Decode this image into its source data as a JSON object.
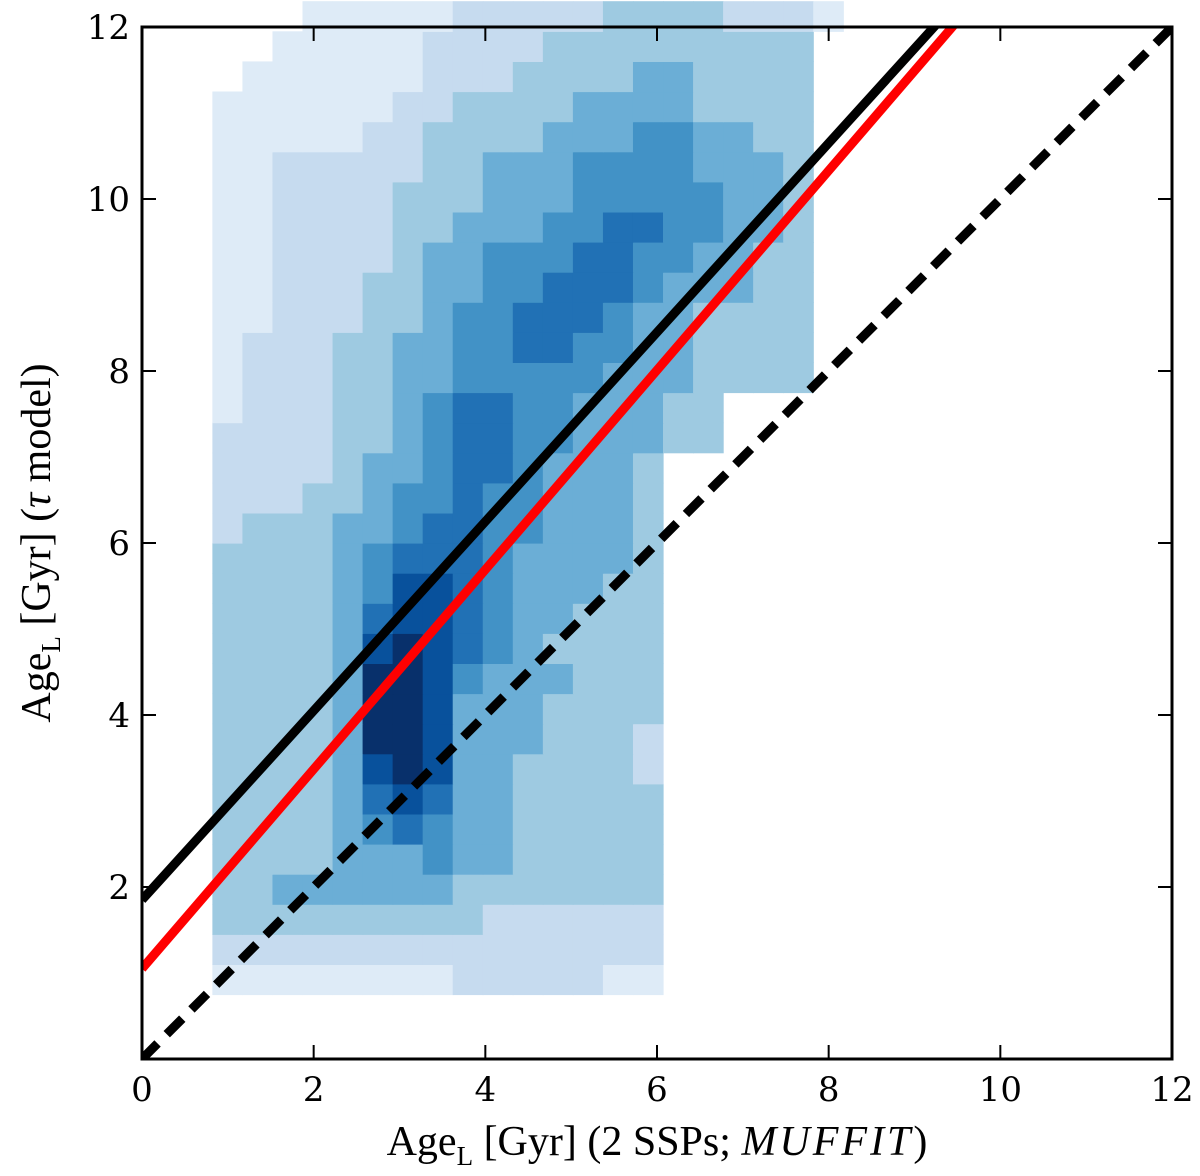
{
  "chart_data": {
    "type": "heatmap",
    "title": "",
    "xlabel": {
      "main": "Age",
      "sub": "L",
      "rest": " [Gyr] (2 SSPs; ",
      "italic": "MUFFIT",
      "end": ")"
    },
    "ylabel": {
      "main": "Age",
      "sub": "L",
      "rest": " [Gyr] (",
      "symbol": "τ",
      "end": " model)"
    },
    "xlim": [
      0,
      12
    ],
    "ylim": [
      0,
      12
    ],
    "xticks": [
      "0",
      "2",
      "4",
      "6",
      "8",
      "10",
      "12"
    ],
    "yticks": [
      "2",
      "4",
      "6",
      "8",
      "10",
      "12"
    ],
    "bin_size": 0.35,
    "bins_x_start": 0.82,
    "bins_y_start": 0.75,
    "colormap": [
      "#f7fbff",
      "#deebf7",
      "#c6dbef",
      "#9ecae1",
      "#6baed6",
      "#4292c6",
      "#2171b5",
      "#08519c",
      "#08306b"
    ],
    "density_rows_from_bottom": [
      "111111112222211      ",
      "222222222222222      ",
      "333333333222222      ",
      "334444443333333      ",
      "333344454433333      ",
      "333345654433333      ",
      "333346764433333      ",
      "333347974433332      ",
      "333348874443332      ",
      "333348874443333      ",
      "333348875444333      ",
      "333347876543333      ",
      "333346776544333      ",
      "333345776544433      ",
      "333345666544443      ",
      "233344566554443      ",
      "222334556554443      ",
      "222234456654443      ",
      "22223345665544433    ",
      "12223345665544433    ",
      "12223344555554443333 ",
      "12223344556655443333 ",
      "11222334556665443333 ",
      "11222334455666544433 ",
      "11222234455566554433 ",
      "11222233444556655443 ",
      "11222233344455555443 ",
      "11222223344455554443 ",
      "11111223333444554433 ",
      "11111122333344443333 ",
      " 1111112223333443333 ",
      "  111112222333333333 ",
      "   111112222233332221"
    ],
    "series": [
      {
        "type": "line",
        "style": "solid",
        "color": "#000000",
        "intercept": 1.85,
        "slope": 1.1
      },
      {
        "type": "line",
        "style": "solid",
        "color": "#ff0000",
        "intercept": 1.05,
        "slope": 1.16
      },
      {
        "type": "line",
        "style": "dashed",
        "color": "#000000",
        "intercept": 0.0,
        "slope": 1.0
      }
    ]
  }
}
